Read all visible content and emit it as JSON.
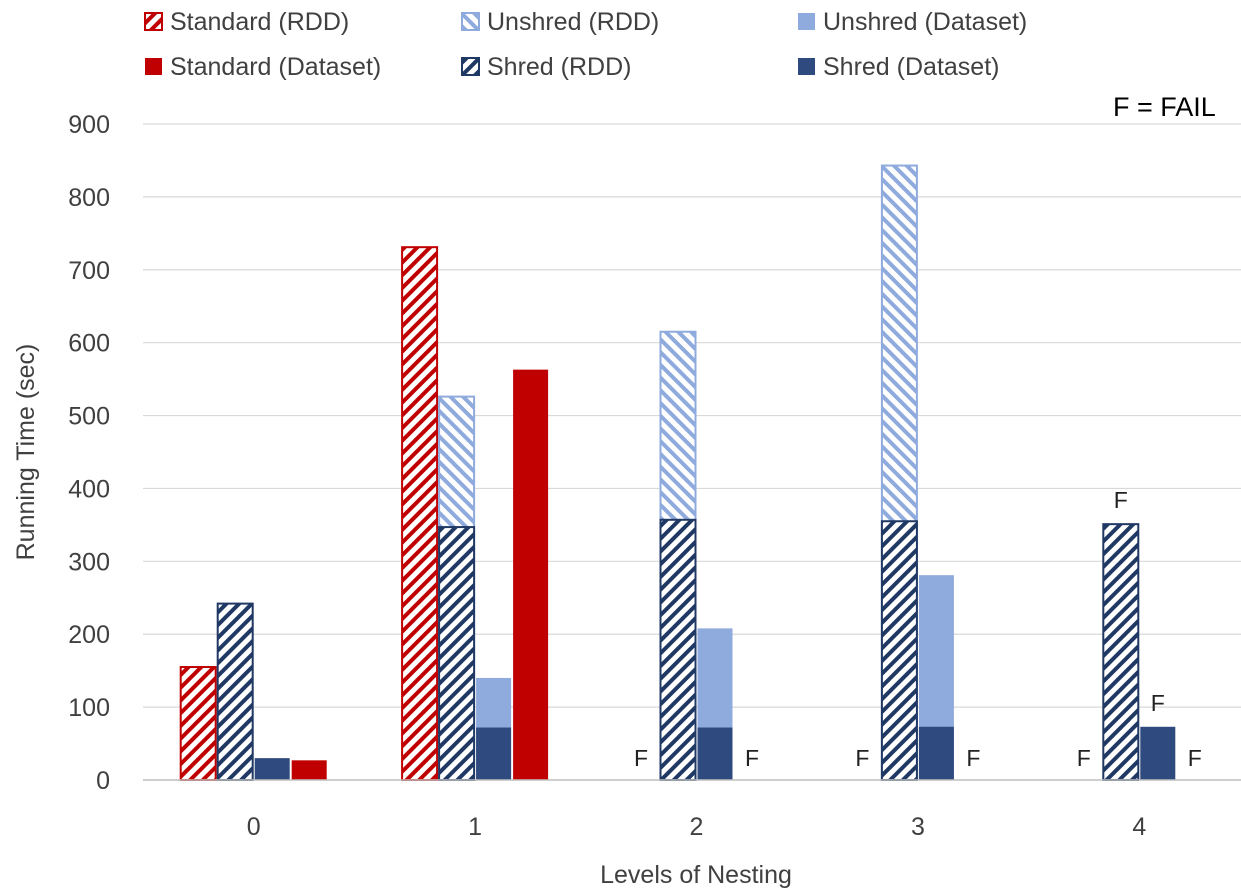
{
  "chart_data": {
    "type": "bar",
    "xlabel": "Levels of Nesting",
    "ylabel": "Running Time (sec)",
    "ylim": [
      0,
      900
    ],
    "yticks": [
      0,
      100,
      200,
      300,
      400,
      500,
      600,
      700,
      800,
      900
    ],
    "categories": [
      "0",
      "1",
      "2",
      "3",
      "4"
    ],
    "note": "F = FAIL",
    "fail_marker": "F",
    "legend_position": "top",
    "grid": true,
    "series": [
      {
        "name": "Standard (RDD)",
        "color": "#c00000",
        "pattern": "hatch-right",
        "values": [
          155,
          731,
          null,
          null,
          null
        ],
        "failed": [
          false,
          false,
          true,
          true,
          true
        ]
      },
      {
        "name": "Standard (Dataset)",
        "color": "#c00000",
        "pattern": "solid",
        "values": [
          27,
          563,
          null,
          null,
          null
        ],
        "failed": [
          false,
          false,
          true,
          true,
          true
        ]
      },
      {
        "name": "Unshred (RDD)",
        "color": "#8faadc",
        "pattern": "hatch-left",
        "values": [
          null,
          526,
          615,
          843,
          null
        ],
        "failed": [
          false,
          false,
          false,
          false,
          true
        ]
      },
      {
        "name": "Shred (RDD)",
        "color": "#203864",
        "pattern": "hatch-right",
        "values": [
          242,
          347,
          357,
          355,
          351
        ],
        "failed": [
          false,
          false,
          false,
          false,
          false
        ]
      },
      {
        "name": "Unshred (Dataset)",
        "color": "#8faadc",
        "pattern": "solid",
        "values": [
          null,
          140,
          208,
          281,
          null
        ],
        "failed": [
          false,
          false,
          false,
          false,
          true
        ]
      },
      {
        "name": "Shred (Dataset)",
        "color": "#2f4a7f",
        "pattern": "solid",
        "values": [
          30,
          72,
          72,
          73,
          73
        ],
        "failed": [
          false,
          false,
          false,
          false,
          false
        ]
      }
    ]
  }
}
